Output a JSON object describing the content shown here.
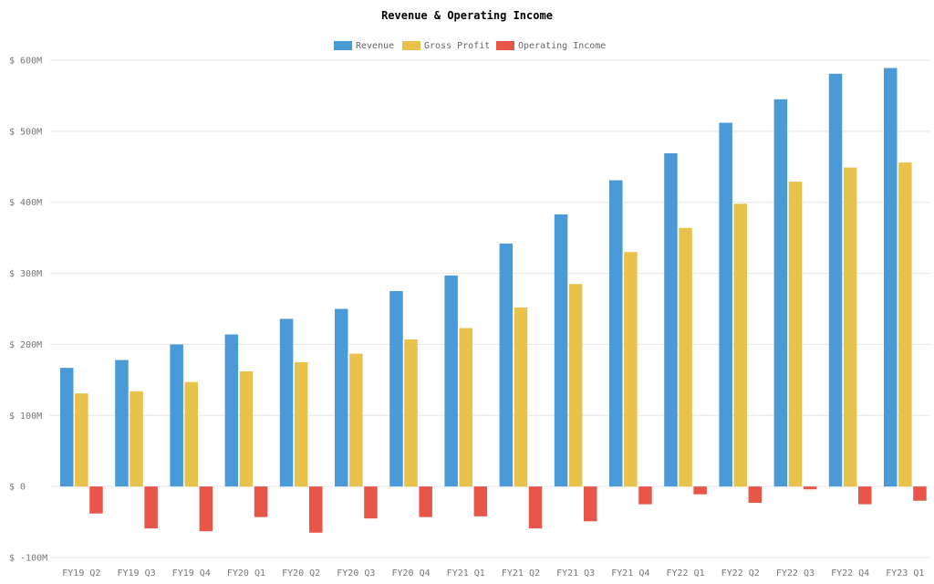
{
  "chart_data": {
    "type": "bar",
    "title": "Revenue & Operating Income",
    "xlabel": "",
    "ylabel": "",
    "ylim": [
      -100,
      600
    ],
    "yticks": [
      600,
      500,
      400,
      300,
      200,
      100,
      0,
      -100
    ],
    "ytick_labels": [
      "$ 600M",
      "$ 500M",
      "$ 400M",
      "$ 300M",
      "$ 200M",
      "$ 100M",
      "$ 0",
      "$ -100M"
    ],
    "grid": true,
    "legend_position": "top-center",
    "categories": [
      "FY19 Q2",
      "FY19 Q3",
      "FY19 Q4",
      "FY20 Q1",
      "FY20 Q2",
      "FY20 Q3",
      "FY20 Q4",
      "FY21 Q1",
      "FY21 Q2",
      "FY21 Q3",
      "FY21 Q4",
      "FY22 Q1",
      "FY22 Q2",
      "FY22 Q3",
      "FY22 Q4",
      "FY23 Q1"
    ],
    "series": [
      {
        "name": "Revenue",
        "color": "#4a9ad8",
        "values": [
          167,
          178,
          200,
          214,
          236,
          250,
          275,
          297,
          342,
          383,
          431,
          469,
          512,
          545,
          581,
          589
        ]
      },
      {
        "name": "Gross Profit",
        "color": "#e8c24a",
        "values": [
          131,
          134,
          147,
          162,
          175,
          187,
          207,
          223,
          252,
          285,
          330,
          364,
          398,
          429,
          449,
          456
        ]
      },
      {
        "name": "Operating Income",
        "color": "#e8564a",
        "values": [
          -38,
          -59,
          -63,
          -43,
          -65,
          -45,
          -43,
          -42,
          -59,
          -49,
          -25,
          -11,
          -23,
          -4,
          -25,
          -20
        ]
      }
    ]
  }
}
